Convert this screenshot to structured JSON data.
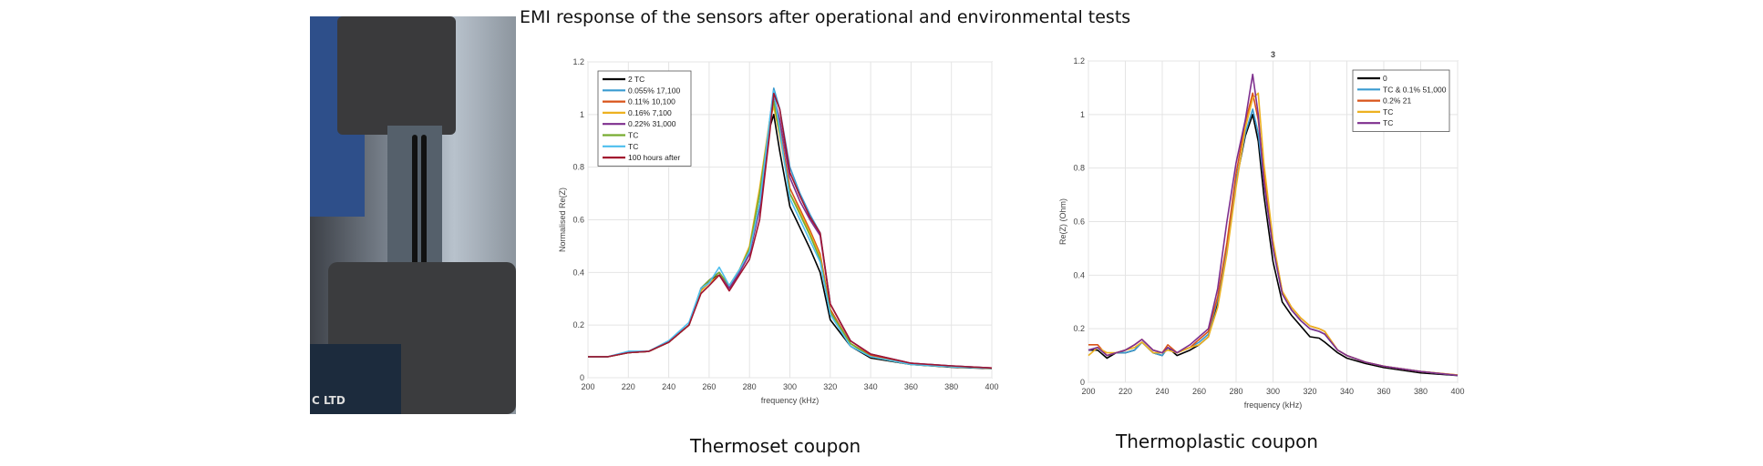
{
  "slide_title": "EMI response of the sensors after operational and environmental tests",
  "photo": {
    "label_text": "C LTD"
  },
  "captions": [
    "Thermoset coupon",
    "Thermoplastic coupon"
  ],
  "chart_data": [
    {
      "type": "line",
      "title": "",
      "xlabel": "frequency (kHz)",
      "ylabel": "Normalised Re(Z)",
      "xlim": [
        200,
        400
      ],
      "ylim": [
        0,
        1.2
      ],
      "xticks": [
        200,
        220,
        240,
        260,
        280,
        300,
        320,
        340,
        360,
        380,
        400
      ],
      "yticks": [
        0,
        0.2,
        0.4,
        0.6,
        0.8,
        1,
        1.2
      ],
      "grid": true,
      "legend": "top-left",
      "x": [
        200,
        210,
        220,
        230,
        240,
        250,
        256,
        260,
        265,
        270,
        275,
        280,
        285,
        290,
        292,
        295,
        300,
        305,
        310,
        315,
        320,
        330,
        340,
        360,
        380,
        400
      ],
      "series": [
        {
          "name": "2 TC",
          "color": "#000000",
          "values": [
            0.08,
            0.08,
            0.095,
            0.1,
            0.135,
            0.2,
            0.33,
            0.37,
            0.39,
            0.34,
            0.4,
            0.47,
            0.66,
            0.95,
            1.0,
            0.86,
            0.65,
            0.57,
            0.49,
            0.4,
            0.22,
            0.12,
            0.075,
            0.05,
            0.04,
            0.035
          ]
        },
        {
          "name": "0.055% 17,100",
          "color": "#3a9bd0",
          "values": [
            0.08,
            0.08,
            0.1,
            0.1,
            0.14,
            0.2,
            0.34,
            0.37,
            0.4,
            0.34,
            0.4,
            0.47,
            0.64,
            0.98,
            1.1,
            1.02,
            0.8,
            0.7,
            0.62,
            0.55,
            0.28,
            0.14,
            0.09,
            0.055,
            0.045,
            0.037
          ]
        },
        {
          "name": "0.11% 10,100",
          "color": "#d95319",
          "values": [
            0.08,
            0.08,
            0.095,
            0.1,
            0.135,
            0.2,
            0.33,
            0.36,
            0.39,
            0.34,
            0.4,
            0.47,
            0.65,
            0.96,
            1.08,
            0.95,
            0.72,
            0.64,
            0.56,
            0.47,
            0.26,
            0.13,
            0.085,
            0.052,
            0.042,
            0.036
          ]
        },
        {
          "name": "0.16% 7,100",
          "color": "#edb120",
          "values": [
            0.08,
            0.08,
            0.095,
            0.1,
            0.135,
            0.2,
            0.33,
            0.36,
            0.39,
            0.35,
            0.41,
            0.5,
            0.72,
            0.98,
            1.03,
            0.92,
            0.7,
            0.63,
            0.55,
            0.46,
            0.25,
            0.13,
            0.08,
            0.05,
            0.042,
            0.036
          ]
        },
        {
          "name": "0.22% 31,000",
          "color": "#7e2f8e",
          "values": [
            0.08,
            0.08,
            0.095,
            0.1,
            0.135,
            0.2,
            0.34,
            0.37,
            0.4,
            0.34,
            0.4,
            0.47,
            0.64,
            0.96,
            1.07,
            0.98,
            0.76,
            0.67,
            0.6,
            0.54,
            0.28,
            0.14,
            0.09,
            0.055,
            0.045,
            0.037
          ]
        },
        {
          "name": "TC",
          "color": "#77ac30",
          "values": [
            0.08,
            0.08,
            0.095,
            0.1,
            0.135,
            0.2,
            0.34,
            0.37,
            0.4,
            0.35,
            0.41,
            0.49,
            0.7,
            0.97,
            1.05,
            0.93,
            0.7,
            0.62,
            0.54,
            0.45,
            0.25,
            0.13,
            0.08,
            0.05,
            0.042,
            0.036
          ]
        },
        {
          "name": "TC",
          "color": "#4dbeee",
          "values": [
            0.08,
            0.08,
            0.1,
            0.1,
            0.14,
            0.21,
            0.34,
            0.36,
            0.42,
            0.35,
            0.41,
            0.48,
            0.66,
            0.98,
            1.09,
            0.94,
            0.68,
            0.6,
            0.52,
            0.44,
            0.24,
            0.12,
            0.08,
            0.05,
            0.042,
            0.036
          ]
        },
        {
          "name": "100 hours after",
          "color": "#a2142f",
          "values": [
            0.08,
            0.08,
            0.095,
            0.1,
            0.135,
            0.2,
            0.32,
            0.35,
            0.39,
            0.33,
            0.39,
            0.45,
            0.6,
            0.93,
            1.08,
            1.02,
            0.78,
            0.69,
            0.61,
            0.55,
            0.28,
            0.14,
            0.09,
            0.055,
            0.045,
            0.037
          ]
        }
      ]
    },
    {
      "type": "line",
      "title": "3",
      "xlabel": "frequency (kHz)",
      "ylabel": "Re(Z) (Ohm)",
      "xlim": [
        200,
        400
      ],
      "ylim": [
        0,
        1.2
      ],
      "xticks": [
        200,
        220,
        240,
        260,
        280,
        300,
        320,
        340,
        360,
        380,
        400
      ],
      "yticks": [
        0,
        0.2,
        0.4,
        0.6,
        0.8,
        1,
        1.2
      ],
      "grid": true,
      "legend": "top-right",
      "x": [
        200,
        205,
        210,
        215,
        220,
        225,
        229,
        235,
        240,
        243,
        248,
        255,
        260,
        265,
        270,
        275,
        280,
        285,
        289,
        292,
        295,
        300,
        305,
        310,
        315,
        320,
        325,
        328,
        335,
        340,
        350,
        360,
        380,
        400
      ],
      "series": [
        {
          "name": "0",
          "color": "#000000",
          "values": [
            0.12,
            0.12,
            0.09,
            0.11,
            0.11,
            0.12,
            0.15,
            0.11,
            0.1,
            0.13,
            0.1,
            0.12,
            0.14,
            0.17,
            0.3,
            0.5,
            0.75,
            0.92,
            1.0,
            0.9,
            0.7,
            0.45,
            0.3,
            0.25,
            0.21,
            0.17,
            0.165,
            0.15,
            0.11,
            0.09,
            0.07,
            0.055,
            0.035,
            0.025
          ]
        },
        {
          "name": "TC & 0.1% 51,000",
          "color": "#3a9bd0",
          "values": [
            0.12,
            0.13,
            0.1,
            0.11,
            0.11,
            0.12,
            0.15,
            0.11,
            0.1,
            0.13,
            0.11,
            0.13,
            0.15,
            0.18,
            0.31,
            0.5,
            0.75,
            0.93,
            1.02,
            0.93,
            0.75,
            0.5,
            0.33,
            0.27,
            0.23,
            0.2,
            0.19,
            0.18,
            0.12,
            0.1,
            0.075,
            0.06,
            0.04,
            0.026
          ]
        },
        {
          "name": "0.2% 21",
          "color": "#d95319",
          "values": [
            0.14,
            0.14,
            0.1,
            0.11,
            0.12,
            0.14,
            0.16,
            0.12,
            0.11,
            0.14,
            0.11,
            0.13,
            0.16,
            0.19,
            0.32,
            0.52,
            0.78,
            0.97,
            1.08,
            0.98,
            0.78,
            0.52,
            0.34,
            0.28,
            0.24,
            0.21,
            0.2,
            0.19,
            0.12,
            0.1,
            0.075,
            0.06,
            0.04,
            0.027
          ]
        },
        {
          "name": "TC",
          "color": "#edb120",
          "values": [
            0.1,
            0.13,
            0.11,
            0.11,
            0.12,
            0.13,
            0.15,
            0.11,
            0.11,
            0.12,
            0.11,
            0.13,
            0.14,
            0.17,
            0.28,
            0.48,
            0.73,
            0.95,
            1.06,
            1.08,
            0.82,
            0.53,
            0.34,
            0.28,
            0.24,
            0.21,
            0.2,
            0.19,
            0.12,
            0.1,
            0.075,
            0.06,
            0.04,
            0.027
          ]
        },
        {
          "name": "TC",
          "color": "#7e2f8e",
          "values": [
            0.12,
            0.13,
            0.1,
            0.11,
            0.12,
            0.14,
            0.16,
            0.12,
            0.11,
            0.13,
            0.11,
            0.14,
            0.17,
            0.2,
            0.35,
            0.6,
            0.82,
            0.98,
            1.15,
            1.0,
            0.75,
            0.5,
            0.33,
            0.27,
            0.23,
            0.2,
            0.19,
            0.18,
            0.12,
            0.1,
            0.075,
            0.06,
            0.04,
            0.026
          ]
        }
      ]
    }
  ]
}
